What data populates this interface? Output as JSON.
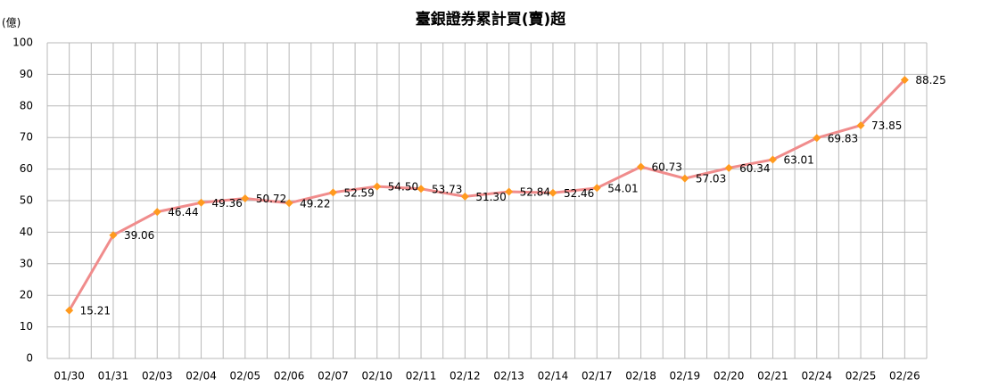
{
  "chart_data": {
    "type": "line",
    "title": "臺銀證券累計買(賣)超",
    "y_label": "(億)",
    "categories": [
      "01/30",
      "01/31",
      "02/03",
      "02/04",
      "02/05",
      "02/06",
      "02/07",
      "02/10",
      "02/11",
      "02/12",
      "02/13",
      "02/14",
      "02/17",
      "02/18",
      "02/19",
      "02/20",
      "02/21",
      "02/24",
      "02/25",
      "02/26"
    ],
    "series": [
      {
        "name": "累計買(賣)超",
        "line_color": "#f08c8c",
        "marker_color": "#ff9a1e",
        "values": [
          15.21,
          39.06,
          46.44,
          49.36,
          50.72,
          49.22,
          52.59,
          54.5,
          53.73,
          51.3,
          52.84,
          52.46,
          54.01,
          60.73,
          57.03,
          60.34,
          63.01,
          69.83,
          73.85,
          88.25
        ],
        "value_labels": [
          "15.21",
          "39.06",
          "46.44",
          "49.36",
          "50.72",
          "49.22",
          "52.59",
          "54.50",
          "53.73",
          "51.30",
          "52.84",
          "52.46",
          "54.01",
          "60.73",
          "57.03",
          "60.34",
          "63.01",
          "69.83",
          "73.85",
          "88.25"
        ]
      }
    ],
    "ylim": [
      0,
      100
    ],
    "yticks": [
      0,
      10,
      20,
      30,
      40,
      50,
      60,
      70,
      80,
      90,
      100
    ],
    "grid": true
  }
}
